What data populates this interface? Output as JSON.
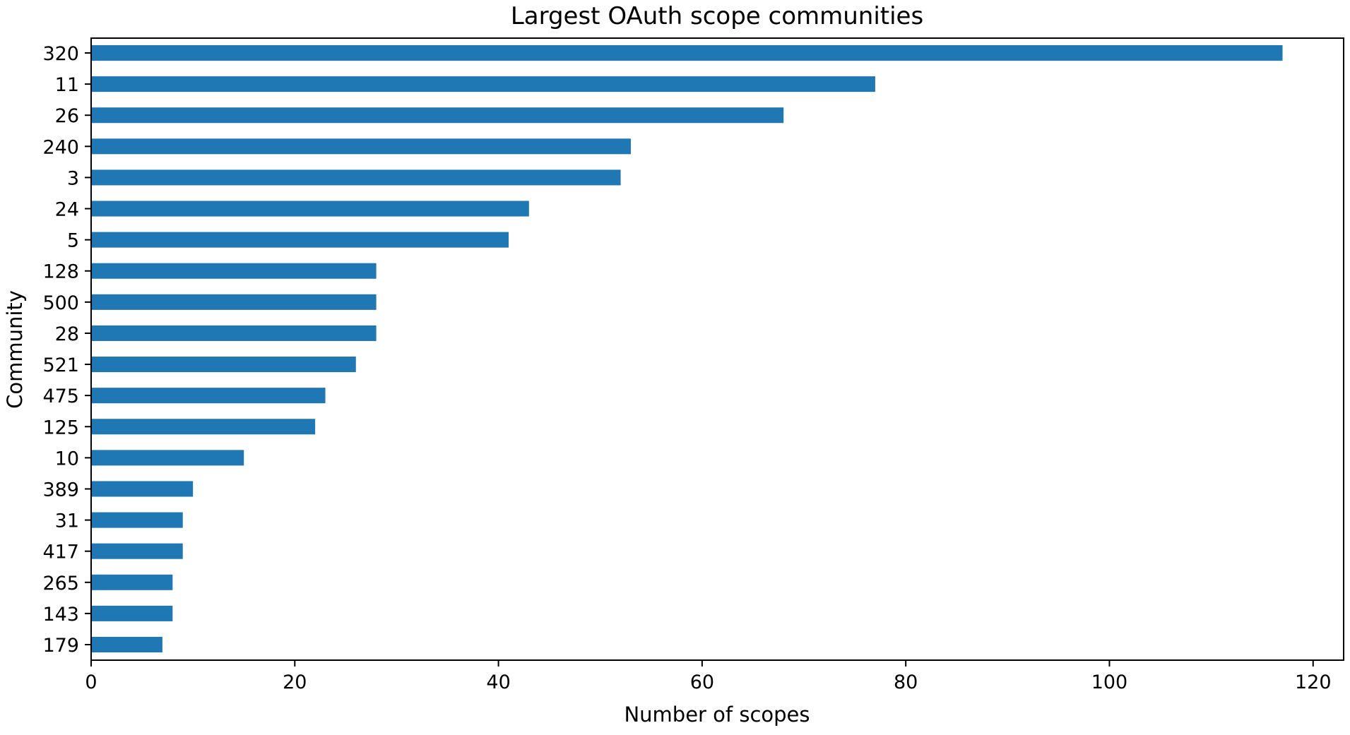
{
  "chart_data": {
    "type": "bar",
    "orientation": "horizontal",
    "title": "Largest OAuth scope communities",
    "xlabel": "Number of scopes",
    "ylabel": "Community",
    "categories": [
      "320",
      "11",
      "26",
      "240",
      "3",
      "24",
      "5",
      "128",
      "500",
      "28",
      "521",
      "475",
      "125",
      "10",
      "389",
      "31",
      "417",
      "265",
      "143",
      "179"
    ],
    "values": [
      117,
      77,
      68,
      53,
      52,
      43,
      41,
      28,
      28,
      28,
      26,
      23,
      22,
      15,
      10,
      9,
      9,
      8,
      8,
      7
    ],
    "xlim": [
      0,
      123
    ],
    "xticks": [
      0,
      20,
      40,
      60,
      80,
      100,
      120
    ],
    "grid": false,
    "legend": "none",
    "bar_color": "#1f77b4"
  }
}
